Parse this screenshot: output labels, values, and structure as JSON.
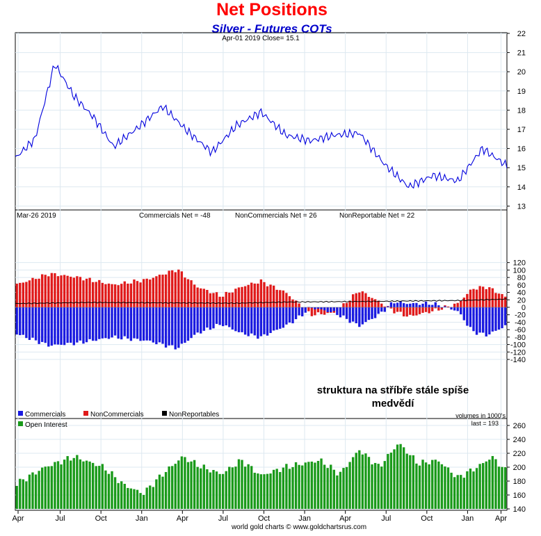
{
  "header": {
    "title": "Net Positions",
    "subtitle": "Silver - Futures COTs",
    "title_color": "#ff0000",
    "subtitle_color": "#0000cc"
  },
  "footer": {
    "credit": "world gold charts © www.goldchartsrus.com"
  },
  "x_axis": {
    "labels": [
      "Apr",
      "Jul",
      "Oct",
      "Jan",
      "Apr",
      "Jul",
      "Oct",
      "Jan",
      "Apr",
      "Jul",
      "Oct",
      "Jan",
      "Apr"
    ]
  },
  "annotation": {
    "line1": "struktura na stříbře stále spíše",
    "line2": "medvědí"
  },
  "chart_data": [
    {
      "type": "line",
      "info": "Apr-01  2019   Close= 15.1",
      "yticks": [
        "13",
        "14",
        "15",
        "16",
        "17",
        "18",
        "19",
        "20",
        "21",
        "22"
      ],
      "ylim": [
        13,
        22
      ],
      "color": "#0000dd",
      "x": [
        0,
        0.04,
        0.08,
        0.12,
        0.16,
        0.2,
        0.25,
        0.3,
        0.35,
        0.4,
        0.45,
        0.5,
        0.55,
        0.6,
        0.65,
        0.7,
        0.75,
        0.8,
        0.85,
        0.9,
        0.95,
        1
      ],
      "values": [
        15.5,
        16.5,
        20.4,
        18.7,
        17.6,
        16.1,
        17.1,
        18.2,
        16.9,
        15.8,
        17.2,
        17.9,
        16.7,
        16.4,
        16.7,
        16.8,
        15.2,
        14.0,
        14.6,
        14.3,
        16.0,
        15.1
      ]
    },
    {
      "type": "bar",
      "info": "Mar-26  2019",
      "legend_top": [
        {
          "label": "Commercials Net = -48"
        },
        {
          "label": "NonCommercials Net = 26"
        },
        {
          "label": "NonReportable Net = 22"
        }
      ],
      "legend_bottom": [
        {
          "name": "Commercials",
          "color": "#1a1ae0"
        },
        {
          "name": "NonCommercials",
          "color": "#e01a1a"
        },
        {
          "name": "NonReportables",
          "color": "#000000"
        }
      ],
      "units_note": "volumes in 1000's",
      "yticks": [
        "120",
        "100",
        "80",
        "60",
        "40",
        "20",
        "0",
        "-20",
        "-40",
        "-60",
        "-80",
        "-100",
        "-120",
        "-140"
      ],
      "ylim": [
        -140,
        120
      ],
      "noncommercials": {
        "x": [
          0,
          0.07,
          0.13,
          0.2,
          0.27,
          0.33,
          0.37,
          0.42,
          0.46,
          0.5,
          0.55,
          0.58,
          0.6,
          0.65,
          0.7,
          0.74,
          0.77,
          0.8,
          0.85,
          0.9,
          0.93,
          0.96,
          1
        ],
        "values": [
          60,
          90,
          80,
          60,
          75,
          102,
          55,
          30,
          55,
          70,
          40,
          5,
          -20,
          -15,
          45,
          15,
          -10,
          -25,
          -10,
          10,
          50,
          55,
          26
        ]
      },
      "commercials": {
        "x": [
          0,
          0.07,
          0.13,
          0.2,
          0.27,
          0.33,
          0.37,
          0.42,
          0.46,
          0.5,
          0.55,
          0.58,
          0.6,
          0.65,
          0.7,
          0.74,
          0.77,
          0.8,
          0.85,
          0.9,
          0.93,
          0.96,
          1
        ],
        "values": [
          -70,
          -103,
          -95,
          -80,
          -90,
          -110,
          -70,
          -45,
          -70,
          -80,
          -50,
          -25,
          0,
          -15,
          -50,
          -20,
          15,
          10,
          10,
          -10,
          -65,
          -75,
          -48
        ]
      },
      "nonreportables": {
        "x": [
          0,
          0.15,
          0.3,
          0.45,
          0.55,
          0.65,
          0.75,
          0.8,
          0.9,
          1
        ],
        "values": [
          10,
          13,
          12,
          11,
          14,
          15,
          16,
          17,
          18,
          22
        ]
      }
    },
    {
      "type": "bar",
      "legend": "Open Interest",
      "last_note": "last = 193",
      "color": "#1a9a1a",
      "yticks": [
        "260",
        "240",
        "220",
        "200",
        "180",
        "160",
        "140"
      ],
      "ylim": [
        140,
        260
      ],
      "x": [
        0,
        0.06,
        0.12,
        0.18,
        0.22,
        0.26,
        0.3,
        0.34,
        0.38,
        0.42,
        0.46,
        0.5,
        0.55,
        0.62,
        0.66,
        0.7,
        0.74,
        0.78,
        0.82,
        0.86,
        0.9,
        0.94,
        0.97,
        1
      ],
      "values": [
        175,
        200,
        215,
        200,
        175,
        162,
        190,
        215,
        200,
        190,
        210,
        188,
        200,
        210,
        190,
        225,
        200,
        235,
        205,
        210,
        185,
        200,
        215,
        193
      ]
    }
  ]
}
